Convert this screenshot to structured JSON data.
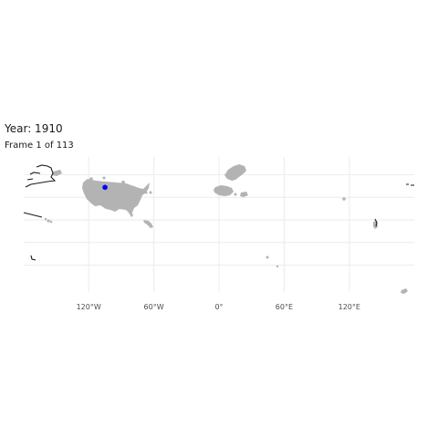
{
  "title": "Year: 1910",
  "subtitle": "Frame 1 of 113",
  "colors": {
    "land": "#b3b3b3",
    "outline": "#1a1a1a",
    "highlight": "#0000ff",
    "grid": "#ebebeb"
  },
  "axis": {
    "x_ticks": [
      {
        "lon": -120,
        "label": "120°W"
      },
      {
        "lon": -60,
        "label": "60°W"
      },
      {
        "lon": 0,
        "label": "0°"
      },
      {
        "lon": 60,
        "label": "60°E"
      },
      {
        "lon": 120,
        "label": "120°E"
      }
    ],
    "lat_grid": [
      -40,
      -20,
      0,
      20,
      40
    ]
  },
  "highlight_point": {
    "lon": -105,
    "lat": 32
  }
}
